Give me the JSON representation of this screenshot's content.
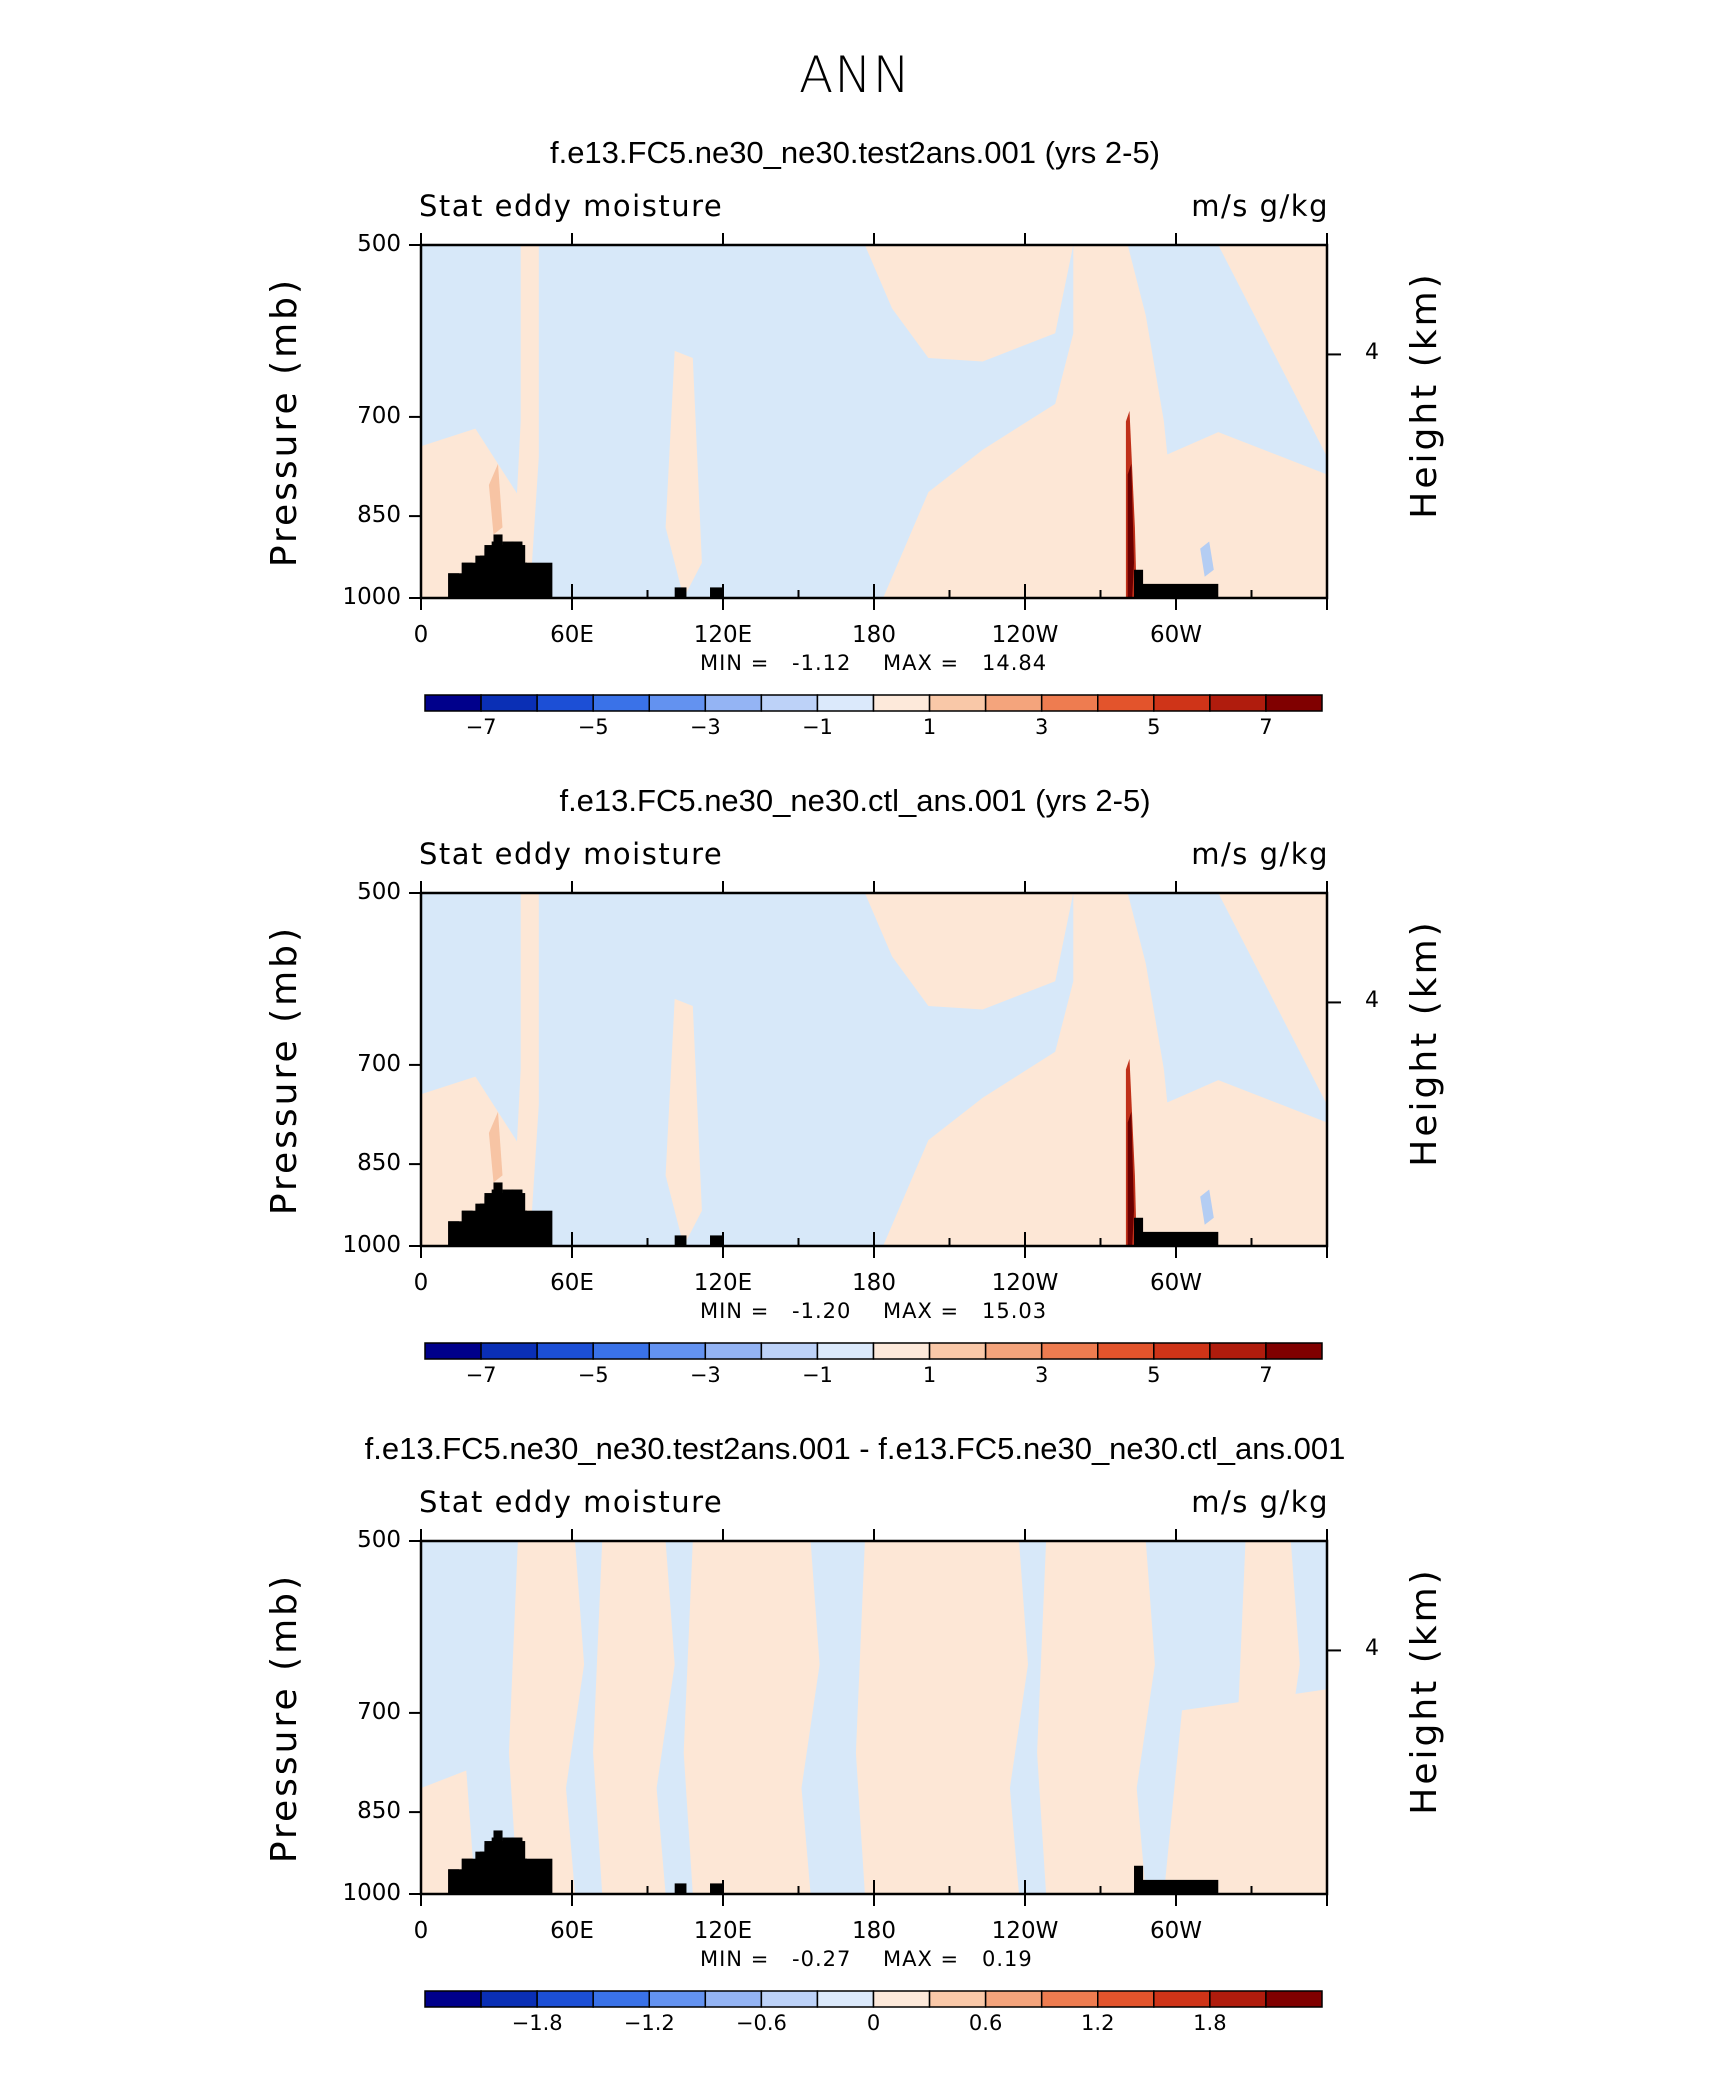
{
  "main_title": "ANN",
  "panels": [
    {
      "title": "f.e13.FC5.ne30_ne30.test2ans.001 (yrs 2-5)",
      "subtitle_left": "Stat eddy moisture",
      "subtitle_right": "m/s g/kg",
      "ylabel": "Pressure (mb)",
      "ylabel_right": "Height (km)",
      "min_label": "MIN =",
      "min_value": "-1.12",
      "max_label": "MAX =",
      "max_value": "14.84",
      "colorbar_labels": [
        "−7",
        "−5",
        "−3",
        "−1",
        "1",
        "3",
        "5",
        "7"
      ]
    },
    {
      "title": "f.e13.FC5.ne30_ne30.ctl_ans.001 (yrs 2-5)",
      "subtitle_left": "Stat eddy moisture",
      "subtitle_right": "m/s g/kg",
      "ylabel": "Pressure (mb)",
      "ylabel_right": "Height (km)",
      "min_label": "MIN =",
      "min_value": "-1.20",
      "max_label": "MAX =",
      "max_value": "15.03",
      "colorbar_labels": [
        "−7",
        "−5",
        "−3",
        "−1",
        "1",
        "3",
        "5",
        "7"
      ]
    },
    {
      "title": "f.e13.FC5.ne30_ne30.test2ans.001 - f.e13.FC5.ne30_ne30.ctl_ans.001",
      "subtitle_left": "Stat eddy moisture",
      "subtitle_right": "m/s g/kg",
      "ylabel": "Pressure (mb)",
      "ylabel_right": "Height (km)",
      "min_label": "MIN =",
      "min_value": "-0.27",
      "max_label": "MAX =",
      "max_value": "0.19",
      "colorbar_labels": [
        "−1.8",
        "−1.2",
        "−0.6",
        "0",
        "0.6",
        "1.2",
        "1.8"
      ]
    }
  ],
  "chart_data": {
    "type": "heatmap",
    "description_axes": {
      "x_ticks": [
        "0",
        "60E",
        "120E",
        "180",
        "120W",
        "60W"
      ],
      "x_range_deg": [
        0,
        360
      ],
      "pressure_ticks": [
        "500",
        "700",
        "850",
        "1000"
      ],
      "pressure_range_mb": [
        1000,
        500
      ],
      "height_ticks": [
        "4"
      ]
    },
    "colorbar_levels_abs": [
      -8,
      -7,
      -6,
      -5,
      -4,
      -3,
      -2,
      -1,
      0,
      1,
      2,
      3,
      4,
      5,
      6,
      7,
      8
    ],
    "colorbar_levels_diff": [
      -2.4,
      -2.1,
      -1.8,
      -1.5,
      -1.2,
      -0.9,
      -0.6,
      -0.3,
      0,
      0.3,
      0.6,
      0.9,
      1.2,
      1.5,
      1.8,
      2.1,
      2.4
    ],
    "colors": [
      "#00008b",
      "#0a2fb5",
      "#1c4fd6",
      "#3a72e8",
      "#6392f0",
      "#94b4f4",
      "#bdd2f8",
      "#dbe9fb",
      "#fde9da",
      "#f9c8a8",
      "#f4a47c",
      "#ee7c50",
      "#e3542c",
      "#cf3418",
      "#b01c0d",
      "#800000"
    ],
    "fill_colors": {
      "negative_light": "#d7e8f9",
      "positive_light": "#fde7d6",
      "positive_med": "#f7c4a4",
      "strong_red": "#c0311a",
      "dark_red": "#6b0000",
      "light_blue_mid": "#b4cdf3",
      "topography": "#000000"
    },
    "value_range_panel1": [
      -1.12,
      14.84
    ],
    "value_range_panel2": [
      -1.2,
      15.03
    ],
    "value_range_diff": [
      -0.27,
      0.19
    ]
  }
}
